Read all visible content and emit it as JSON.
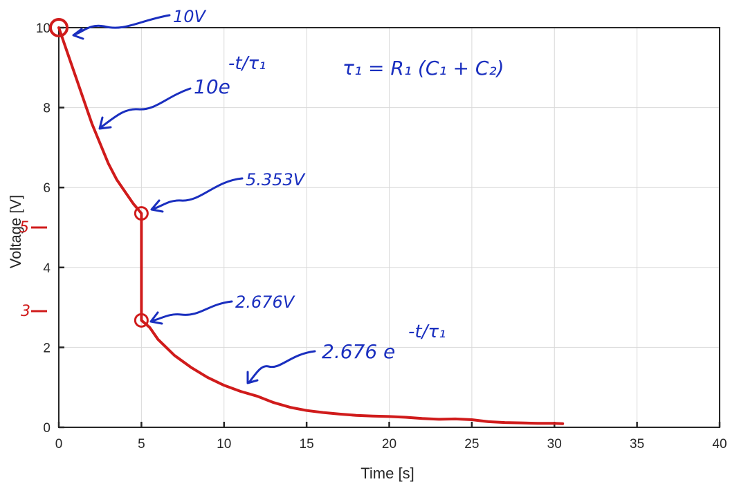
{
  "chart_data": {
    "type": "line",
    "title": "",
    "xlabel": "Time [s]",
    "ylabel": "Voltage [V]",
    "xlim": [
      0,
      40
    ],
    "ylim": [
      0,
      10
    ],
    "xticks": [
      "0",
      "5",
      "10",
      "15",
      "20",
      "25",
      "30",
      "35",
      "40"
    ],
    "yticks": [
      "0",
      "2",
      "4",
      "6",
      "8",
      "10"
    ],
    "grid": true,
    "series": [
      {
        "color": "#d01b1b",
        "x": [
          0,
          0.5,
          1,
          1.5,
          2,
          2.5,
          3,
          3.5,
          4,
          4.5,
          5,
          5,
          5.5,
          6,
          7,
          8,
          9,
          10,
          11,
          12,
          13,
          14,
          15,
          16,
          17,
          18,
          19,
          20,
          21,
          22,
          23,
          24,
          25,
          26,
          27,
          28,
          29,
          30,
          30.5
        ],
        "y": [
          10,
          9.4,
          8.8,
          8.2,
          7.6,
          7.1,
          6.6,
          6.2,
          5.9,
          5.6,
          5.353,
          2.676,
          2.5,
          2.2,
          1.8,
          1.5,
          1.25,
          1.05,
          0.9,
          0.78,
          0.62,
          0.5,
          0.42,
          0.37,
          0.33,
          0.3,
          0.28,
          0.27,
          0.25,
          0.22,
          0.2,
          0.21,
          0.19,
          0.14,
          0.12,
          0.11,
          0.1,
          0.1,
          0.09
        ]
      }
    ],
    "markers": [
      {
        "x": 0,
        "y": 10,
        "label": "10V"
      },
      {
        "x": 5,
        "y": 5.353,
        "label": "5.353V"
      },
      {
        "x": 5,
        "y": 2.676,
        "label": "2.676V"
      }
    ],
    "annotations": {
      "eq1": "10e",
      "eq1_exp": "-t/τ₁",
      "tau": "τ₁ = R₁ (C₁ + C₂)",
      "eq2": "2.676 e",
      "eq2_exp": "-t/τ₁",
      "extra_ticks": [
        "5",
        "3"
      ]
    },
    "colors": {
      "line": "#d01b1b",
      "ink": "#1a2fbf"
    }
  }
}
